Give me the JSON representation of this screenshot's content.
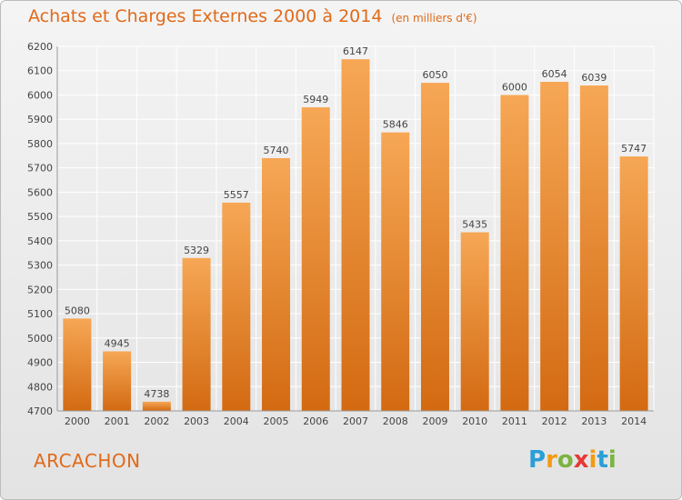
{
  "title": {
    "main": "Achats et Charges Externes 2000 à 2014",
    "unit": "(en milliers d'€)"
  },
  "footer": {
    "city": "ARCACHON",
    "logo_letters": [
      "P",
      "r",
      "o",
      "x",
      "i",
      "t",
      "i"
    ],
    "logo_colors": [
      "#2a9fd6",
      "#f39c12",
      "#7cb342",
      "#e53935",
      "#f39c12",
      "#2a9fd6",
      "#7cb342"
    ]
  },
  "colors": {
    "bar_top": "#f6a755",
    "bar_bottom": "#d36a12",
    "grid": "#ffffff",
    "text": "#444444"
  },
  "chart_data": {
    "type": "bar",
    "title": "Achats et Charges Externes 2000 à 2014",
    "subtitle": "(en milliers d'€)",
    "categories": [
      "2000",
      "2001",
      "2002",
      "2003",
      "2004",
      "2005",
      "2006",
      "2007",
      "2008",
      "2009",
      "2010",
      "2011",
      "2012",
      "2013",
      "2014"
    ],
    "values": [
      5080,
      4945,
      4738,
      5329,
      5557,
      5740,
      5949,
      6147,
      5846,
      6050,
      5435,
      6000,
      6054,
      6039,
      5747
    ],
    "ylim": [
      4700,
      6200
    ],
    "yticks": [
      4700,
      4800,
      4900,
      5000,
      5100,
      5200,
      5300,
      5400,
      5500,
      5600,
      5700,
      5800,
      5900,
      6000,
      6100,
      6200
    ],
    "grid": true
  }
}
